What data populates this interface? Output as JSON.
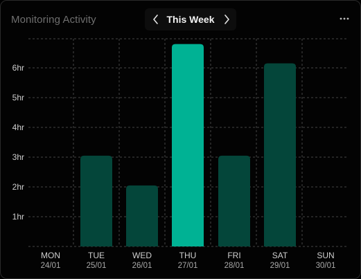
{
  "header": {
    "title": "Monitoring Activity",
    "week_label": "This Week",
    "prev_icon": "chevron-left-icon",
    "next_icon": "chevron-right-icon",
    "menu_icon": "more-horizontal-icon"
  },
  "colors": {
    "bar": "#04463a",
    "bar_highlight": "#00b294",
    "grid": "#444444",
    "axis_text": "#cfcfcf",
    "date_text": "#a9a9a9"
  },
  "chart_data": {
    "type": "bar",
    "categories": [
      "MON",
      "TUE",
      "WED",
      "THU",
      "FRI",
      "SAT",
      "SUN"
    ],
    "dates": [
      "24/01",
      "25/01",
      "26/01",
      "27/01",
      "28/01",
      "29/01",
      "30/01"
    ],
    "values": [
      0,
      3.05,
      2.05,
      6.8,
      3.05,
      6.15,
      0
    ],
    "highlight": "THU",
    "yticks": [
      "1hr",
      "2hr",
      "3hr",
      "4hr",
      "5hr",
      "6hr"
    ],
    "ylim": [
      0,
      7
    ],
    "grid": true
  }
}
